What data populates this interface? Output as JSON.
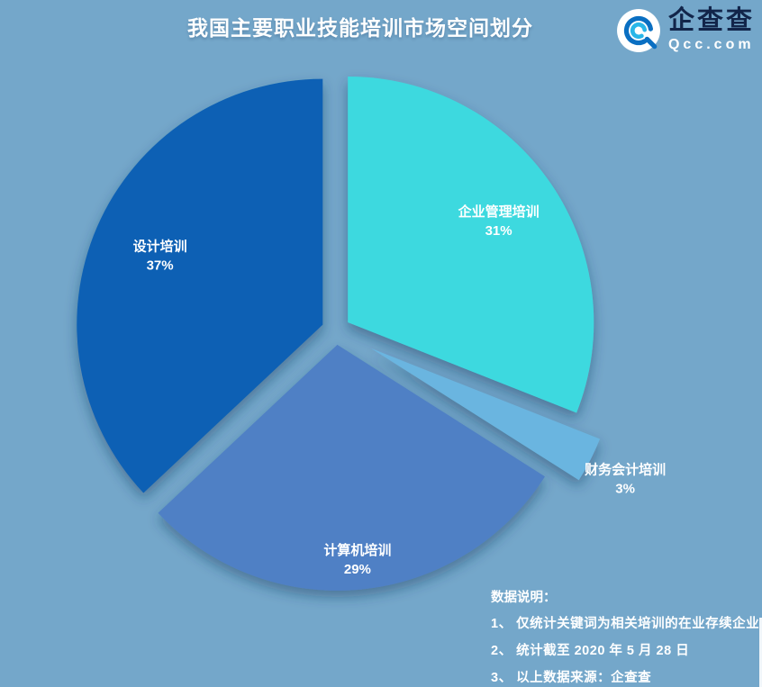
{
  "page": {
    "background": "#74a7ca"
  },
  "header": {
    "title": "我国主要职业技能培训市场空间划分",
    "logo": {
      "brand": "企查查",
      "domain": "Qcc.com",
      "icon": "qcc-circle-q-icon",
      "brand_color": "#12254a",
      "domain_color": "#ffffff"
    }
  },
  "chart_data": {
    "type": "pie",
    "title": "我国主要职业技能培训市场空间划分",
    "unit": "%",
    "start_angle_deg": 0,
    "clockwise": true,
    "legend": "none",
    "style": "exploded pie with drop shadows, labels inside slices except smallest slice labeled outside",
    "slices": [
      {
        "label": "企业管理培训",
        "value": 31,
        "color": "#3ed9df",
        "explode": 16,
        "label_r_frac": 0.8
      },
      {
        "label": "财务会计培训",
        "value": 3,
        "color": "#6ab5e0",
        "explode": 44,
        "label_r_frac": 1.32
      },
      {
        "label": "计算机培训",
        "value": 29,
        "color": "#4f80c5",
        "explode": 16,
        "label_r_frac": 0.93
      },
      {
        "label": "设计培训",
        "value": 37,
        "color": "#0e61b4",
        "explode": 16,
        "label_r_frac": 0.78
      }
    ]
  },
  "notes": {
    "heading": "数据说明：",
    "items": [
      "1、 仅统计关键词为相关培训的在业存续企业",
      "2、 统计截至 2020 年 5 月 28 日",
      "3、 以上数据来源：企查查"
    ]
  }
}
